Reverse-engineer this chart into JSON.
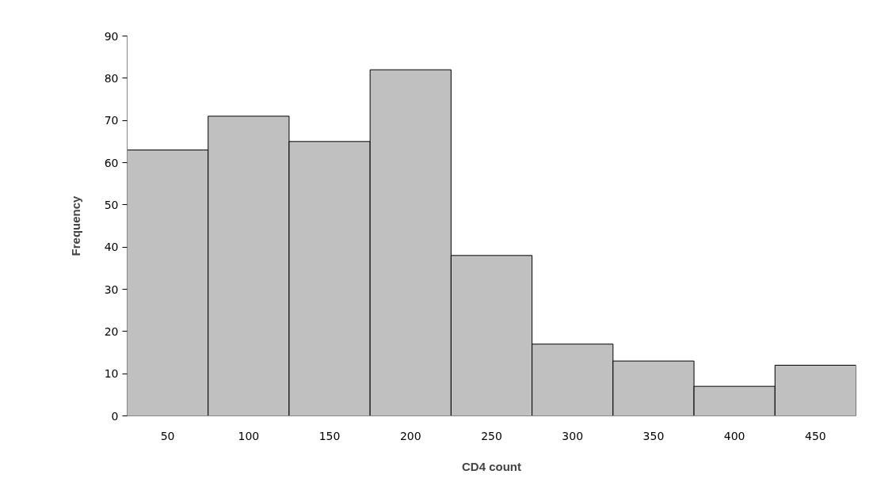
{
  "chart_data": {
    "type": "histogram",
    "xlabel": "CD4 count",
    "ylabel": "Frequency",
    "bins": [
      25,
      75,
      125,
      175,
      225,
      275,
      325,
      375,
      425,
      475
    ],
    "values": [
      63,
      71,
      65,
      82,
      38,
      17,
      13,
      7,
      12
    ],
    "color": "#c0c0c0",
    "xlim": [
      25,
      475
    ],
    "xticks": [
      50,
      100,
      150,
      200,
      250,
      300,
      350,
      400,
      450
    ],
    "ylim": [
      0,
      90
    ],
    "yticks": [
      0,
      10,
      20,
      30,
      40,
      50,
      60,
      70,
      80,
      90
    ],
    "grid": false
  }
}
